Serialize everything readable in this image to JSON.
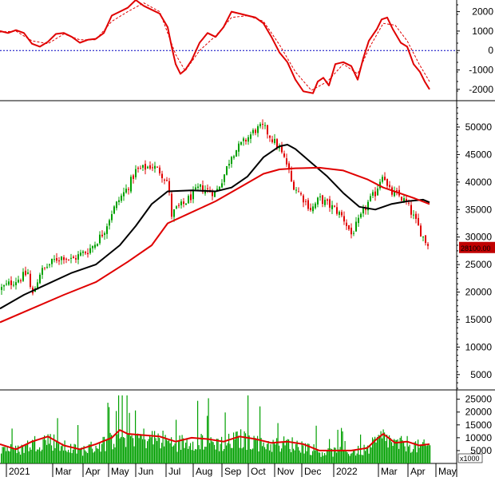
{
  "chart_data": [
    {
      "panel": "oscillator",
      "type": "line",
      "y_ticks": [
        2000,
        1000,
        0,
        -1000,
        -2000
      ],
      "y_tick_labels": [
        "2000",
        "1000",
        "0",
        "-1000",
        "-2000"
      ],
      "ylim": [
        -2500,
        2600
      ],
      "zero_line": true,
      "series": [
        {
          "color": "#e00000",
          "style": "solid",
          "values": [
            [
              0,
              1000
            ],
            [
              10,
              900
            ],
            [
              20,
              1050
            ],
            [
              30,
              900
            ],
            [
              40,
              350
            ],
            [
              50,
              200
            ],
            [
              60,
              450
            ],
            [
              70,
              850
            ],
            [
              80,
              900
            ],
            [
              90,
              700
            ],
            [
              100,
              400
            ],
            [
              110,
              550
            ],
            [
              120,
              600
            ],
            [
              130,
              900
            ],
            [
              140,
              1800
            ],
            [
              150,
              2000
            ],
            [
              160,
              2200
            ],
            [
              170,
              2600
            ],
            [
              180,
              2300
            ],
            [
              190,
              2100
            ],
            [
              200,
              1900
            ],
            [
              210,
              1200
            ],
            [
              215,
              200
            ],
            [
              220,
              -700
            ],
            [
              226,
              -1200
            ],
            [
              232,
              -1000
            ],
            [
              240,
              -500
            ],
            [
              250,
              400
            ],
            [
              260,
              900
            ],
            [
              270,
              700
            ],
            [
              280,
              1200
            ],
            [
              290,
              2000
            ],
            [
              300,
              1900
            ],
            [
              310,
              1800
            ],
            [
              320,
              1700
            ],
            [
              330,
              1400
            ],
            [
              340,
              700
            ],
            [
              350,
              -100
            ],
            [
              360,
              -600
            ],
            [
              370,
              -1500
            ],
            [
              380,
              -2100
            ],
            [
              392,
              -2200
            ],
            [
              398,
              -1600
            ],
            [
              405,
              -1400
            ],
            [
              412,
              -1800
            ],
            [
              420,
              -700
            ],
            [
              430,
              -600
            ],
            [
              440,
              -800
            ],
            [
              448,
              -1500
            ],
            [
              455,
              -400
            ],
            [
              462,
              500
            ],
            [
              472,
              1100
            ],
            [
              478,
              1600
            ],
            [
              485,
              1700
            ],
            [
              492,
              1100
            ],
            [
              502,
              400
            ],
            [
              510,
              200
            ],
            [
              518,
              -700
            ],
            [
              526,
              -1100
            ],
            [
              532,
              -1600
            ],
            [
              538,
              -2000
            ]
          ]
        },
        {
          "color": "#e00000",
          "style": "dashed",
          "values": [
            [
              0,
              950
            ],
            [
              20,
              1000
            ],
            [
              40,
              500
            ],
            [
              60,
              350
            ],
            [
              80,
              850
            ],
            [
              100,
              550
            ],
            [
              120,
              550
            ],
            [
              140,
              1500
            ],
            [
              160,
              2000
            ],
            [
              180,
              2450
            ],
            [
              200,
              2000
            ],
            [
              220,
              -200
            ],
            [
              232,
              -1050
            ],
            [
              250,
              0
            ],
            [
              270,
              750
            ],
            [
              290,
              1700
            ],
            [
              310,
              1800
            ],
            [
              330,
              1500
            ],
            [
              350,
              300
            ],
            [
              370,
              -1100
            ],
            [
              390,
              -2050
            ],
            [
              410,
              -1600
            ],
            [
              430,
              -700
            ],
            [
              448,
              -1200
            ],
            [
              462,
              100
            ],
            [
              480,
              1400
            ],
            [
              495,
              1300
            ],
            [
              510,
              500
            ],
            [
              525,
              -700
            ],
            [
              538,
              -1600
            ]
          ]
        }
      ]
    },
    {
      "panel": "price",
      "type": "candlestick",
      "y_ticks": [
        5000,
        10000,
        15000,
        20000,
        25000,
        30000,
        35000,
        40000,
        45000,
        50000
      ],
      "y_tick_labels": [
        "5000",
        "10000",
        "15000",
        "20000",
        "25000",
        "30000",
        "35000",
        "40000",
        "45000",
        "50000"
      ],
      "ylim": [
        2500,
        54500
      ],
      "last_price_label": "28100.00",
      "x_labels": [
        "2021",
        "Mar",
        "Apr",
        "May",
        "Jun",
        "Jul",
        "Aug",
        "Sep",
        "Oct",
        "Nov",
        "Dec",
        "2022",
        "Mar",
        "Apr",
        "May"
      ],
      "close_path": [
        [
          0,
          20500
        ],
        [
          15,
          21800
        ],
        [
          25,
          22500
        ],
        [
          35,
          23500
        ],
        [
          40,
          19000
        ],
        [
          50,
          23500
        ],
        [
          60,
          24800
        ],
        [
          70,
          26000
        ],
        [
          80,
          26500
        ],
        [
          90,
          25800
        ],
        [
          100,
          26800
        ],
        [
          110,
          27500
        ],
        [
          120,
          29000
        ],
        [
          130,
          31000
        ],
        [
          140,
          34500
        ],
        [
          150,
          37000
        ],
        [
          160,
          39000
        ],
        [
          170,
          42000
        ],
        [
          180,
          42500
        ],
        [
          190,
          43000
        ],
        [
          200,
          42000
        ],
        [
          210,
          40000
        ],
        [
          215,
          34000
        ],
        [
          220,
          35000
        ],
        [
          230,
          36000
        ],
        [
          240,
          37500
        ],
        [
          250,
          39000
        ],
        [
          260,
          38500
        ],
        [
          270,
          38000
        ],
        [
          280,
          41000
        ],
        [
          290,
          45000
        ],
        [
          300,
          46500
        ],
        [
          310,
          48000
        ],
        [
          320,
          49500
        ],
        [
          330,
          50000
        ],
        [
          340,
          48000
        ],
        [
          350,
          46000
        ],
        [
          360,
          43000
        ],
        [
          365,
          40000
        ],
        [
          370,
          39000
        ],
        [
          380,
          37000
        ],
        [
          390,
          35000
        ],
        [
          400,
          37000
        ],
        [
          410,
          36000
        ],
        [
          420,
          35000
        ],
        [
          430,
          33500
        ],
        [
          440,
          30500
        ],
        [
          450,
          33000
        ],
        [
          460,
          36000
        ],
        [
          470,
          38000
        ],
        [
          480,
          42000
        ],
        [
          485,
          39000
        ],
        [
          490,
          38000
        ],
        [
          500,
          37500
        ],
        [
          510,
          36000
        ],
        [
          520,
          33000
        ],
        [
          530,
          30000
        ],
        [
          538,
          28100
        ]
      ],
      "series": [
        {
          "color": "#000000",
          "values": [
            [
              0,
              17000
            ],
            [
              30,
              19500
            ],
            [
              60,
              21500
            ],
            [
              90,
              23500
            ],
            [
              120,
              25000
            ],
            [
              150,
              28500
            ],
            [
              170,
              32000
            ],
            [
              190,
              36000
            ],
            [
              210,
              38300
            ],
            [
              240,
              38500
            ],
            [
              270,
              38300
            ],
            [
              290,
              39000
            ],
            [
              310,
              41000
            ],
            [
              330,
              44500
            ],
            [
              350,
              46500
            ],
            [
              360,
              46800
            ],
            [
              370,
              46000
            ],
            [
              390,
              43500
            ],
            [
              410,
              41000
            ],
            [
              430,
              38000
            ],
            [
              450,
              35500
            ],
            [
              470,
              35000
            ],
            [
              490,
              36000
            ],
            [
              510,
              36500
            ],
            [
              530,
              36800
            ],
            [
              538,
              36300
            ]
          ]
        },
        {
          "color": "#e00000",
          "values": [
            [
              0,
              14500
            ],
            [
              40,
              17000
            ],
            [
              80,
              19500
            ],
            [
              120,
              21800
            ],
            [
              160,
              25500
            ],
            [
              190,
              28500
            ],
            [
              210,
              32500
            ],
            [
              240,
              34500
            ],
            [
              270,
              36500
            ],
            [
              300,
              39000
            ],
            [
              330,
              41500
            ],
            [
              350,
              42300
            ],
            [
              370,
              42500
            ],
            [
              400,
              42600
            ],
            [
              430,
              42100
            ],
            [
              460,
              40500
            ],
            [
              480,
              39000
            ],
            [
              500,
              38000
            ],
            [
              520,
              37000
            ],
            [
              538,
              36000
            ]
          ]
        }
      ]
    },
    {
      "panel": "volume",
      "type": "bar",
      "y_ticks": [
        5000,
        10000,
        15000,
        20000,
        25000
      ],
      "y_tick_labels": [
        "5000",
        "10000",
        "15000",
        "20000",
        "25000"
      ],
      "ylim": [
        0,
        28000
      ],
      "unit_label": "x1000",
      "series": [
        {
          "color": "#e00000",
          "type": "line",
          "values": [
            [
              0,
              7500
            ],
            [
              20,
              5500
            ],
            [
              40,
              8500
            ],
            [
              60,
              10500
            ],
            [
              80,
              7000
            ],
            [
              100,
              5500
            ],
            [
              120,
              7500
            ],
            [
              140,
              10000
            ],
            [
              150,
              13000
            ],
            [
              160,
              11500
            ],
            [
              180,
              11000
            ],
            [
              200,
              10500
            ],
            [
              220,
              8500
            ],
            [
              240,
              10000
            ],
            [
              260,
              9500
            ],
            [
              280,
              8500
            ],
            [
              300,
              10500
            ],
            [
              320,
              9500
            ],
            [
              340,
              8000
            ],
            [
              360,
              8500
            ],
            [
              380,
              7500
            ],
            [
              400,
              5000
            ],
            [
              420,
              5000
            ],
            [
              440,
              5000
            ],
            [
              460,
              6000
            ],
            [
              470,
              9000
            ],
            [
              480,
              11500
            ],
            [
              495,
              8000
            ],
            [
              510,
              8500
            ],
            [
              525,
              7000
            ],
            [
              538,
              7500
            ]
          ]
        }
      ]
    }
  ]
}
